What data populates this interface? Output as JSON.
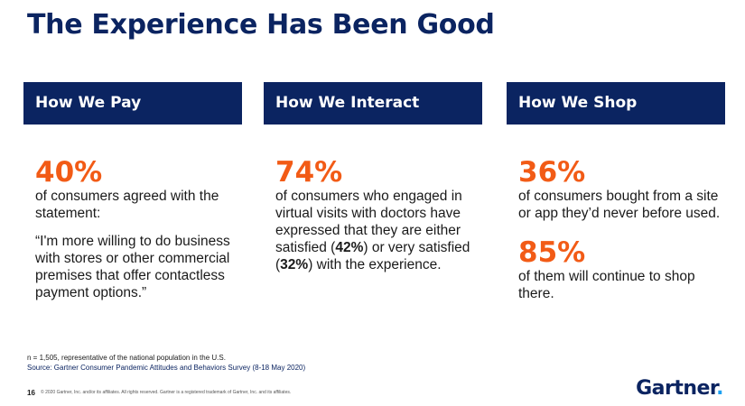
{
  "slide": {
    "title": "The Experience Has Been Good"
  },
  "columns": [
    {
      "header": "How We Pay",
      "stat": "40%",
      "text": "of consumers agreed with the statement:",
      "quote": "“I'm more willing to do business with stores or other commercial premises that offer contactless payment options.”"
    },
    {
      "header": "How We Interact",
      "stat": "74%",
      "text_a": "of consumers who engaged in virtual visits with doctors have expressed that they are either satisfied (",
      "bold_1": "42%",
      "text_b": ") or very satisfied (",
      "bold_2": "32%",
      "text_c": ") with the experience."
    },
    {
      "header": "How We Shop",
      "stat": "36%",
      "text": "of consumers bought from a site or app they’d never before used.",
      "stat2": "85%",
      "text2": "of them will continue to shop there."
    }
  ],
  "footer": {
    "note": "n = 1,505, representative of the national population in the U.S.",
    "source": "Source: Gartner Consumer Pandemic Attitudes and Behaviors Survey (8-18 May 2020)",
    "page_number": "16",
    "copyright": "© 2020 Gartner, Inc. and/or its affiliates. All rights reserved. Gartner is a registered trademark of Gartner, Inc. and its affiliates.",
    "logo_text": "Gartner",
    "logo_dot": "."
  },
  "colors": {
    "navy": "#0b2461",
    "orange": "#f25b16",
    "logo_dot": "#1da1f2"
  }
}
